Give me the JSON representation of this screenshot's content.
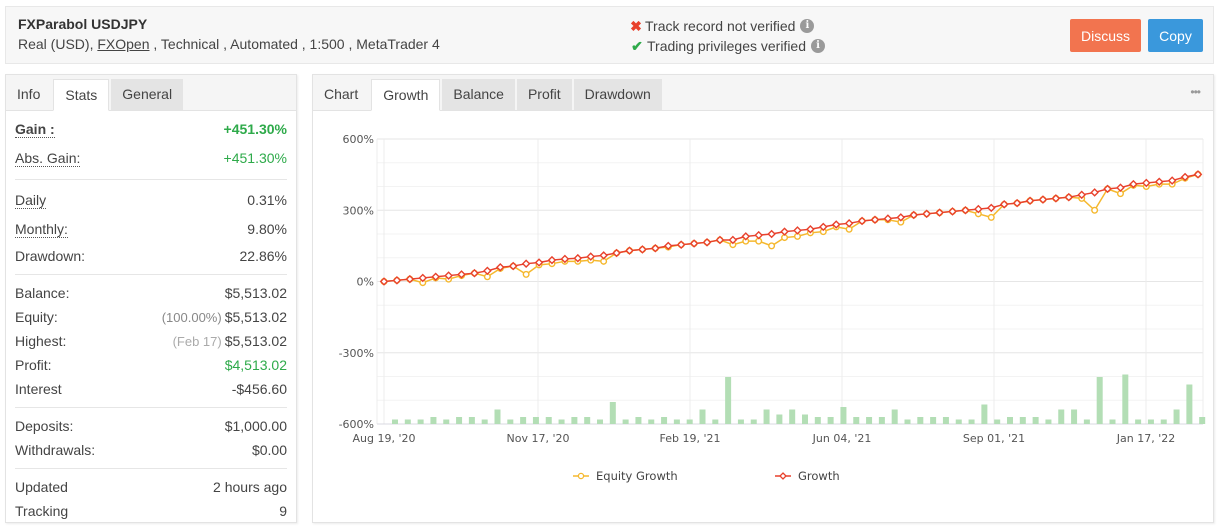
{
  "header": {
    "title": "FXParabol USDJPY",
    "account_type": "Real (USD), ",
    "broker": "FXOpen",
    "details": " , Technical , Automated , 1:500 , MetaTrader 4",
    "verifications": [
      {
        "icon": "x-icon",
        "text": "Track record not verified",
        "status": "not-verified"
      },
      {
        "icon": "check-icon",
        "text": "Trading privileges verified",
        "status": "verified"
      }
    ],
    "discuss_label": "Discuss",
    "copy_label": "Copy"
  },
  "stats_panel": {
    "tabs": [
      {
        "label": "Info",
        "state": "plain"
      },
      {
        "label": "Stats",
        "state": "active"
      },
      {
        "label": "General",
        "state": "gray"
      }
    ],
    "groups": [
      [
        {
          "label": "Gain :",
          "value": "+451.30%",
          "green": true,
          "bold": true,
          "dotted": true
        },
        {
          "label": "Abs. Gain:",
          "value": "+451.30%",
          "green": true,
          "dotted": true
        }
      ],
      [
        {
          "label": "Daily",
          "value": "0.31%",
          "dotted": true
        },
        {
          "label": "Monthly:",
          "value": "9.80%",
          "dotted": true
        },
        {
          "label": "Drawdown:",
          "value": "22.86%"
        }
      ],
      [
        {
          "label": "Balance:",
          "value": "$5,513.02"
        },
        {
          "label": "Equity:",
          "sub": "(100.00%)",
          "value": "$5,513.02"
        },
        {
          "label": "Highest:",
          "sub": "(Feb 17)",
          "value": "$5,513.02"
        },
        {
          "label": "Profit:",
          "value": "$4,513.02",
          "green": true
        },
        {
          "label": "Interest",
          "value": "-$456.60"
        }
      ],
      [
        {
          "label": "Deposits:",
          "value": "$1,000.00"
        },
        {
          "label": "Withdrawals:",
          "value": "$0.00"
        }
      ],
      [
        {
          "label": "Updated",
          "value": "2 hours ago"
        },
        {
          "label": "Tracking",
          "value": "9"
        }
      ]
    ]
  },
  "chart_panel": {
    "tabs": [
      {
        "label": "Chart",
        "state": "plain"
      },
      {
        "label": "Growth",
        "state": "active"
      },
      {
        "label": "Balance",
        "state": "gray"
      },
      {
        "label": "Profit",
        "state": "gray"
      },
      {
        "label": "Drawdown",
        "state": "gray"
      }
    ],
    "more_icon": "•••"
  },
  "colors": {
    "growth": "#e8412c",
    "equity": "#f5b82e",
    "bars": "#b3deb5",
    "discuss": "#f2744f",
    "copy": "#3a98dc",
    "positive": "#2eaa4a"
  },
  "chart_data": {
    "type": "line",
    "title": "",
    "xlabel": "",
    "ylabel": "",
    "ylim": [
      -600,
      600
    ],
    "yticks": [
      "600%",
      "300%",
      "0%",
      "-300%",
      "-600%"
    ],
    "xticks": [
      "Aug 19, '20",
      "Nov 17, '20",
      "Feb 19, '21",
      "Jun 04, '21",
      "Sep 01, '21",
      "Jan 17, '22"
    ],
    "grid": true,
    "legend": [
      "Equity Growth",
      "Growth"
    ],
    "legend_position": "bottom",
    "series": [
      {
        "name": "Growth",
        "values": [
          0,
          5,
          10,
          15,
          20,
          25,
          30,
          35,
          45,
          60,
          65,
          75,
          80,
          90,
          95,
          98,
          105,
          110,
          120,
          130,
          135,
          140,
          150,
          155,
          160,
          165,
          175,
          175,
          190,
          195,
          200,
          210,
          215,
          220,
          230,
          240,
          245,
          255,
          260,
          265,
          270,
          280,
          285,
          290,
          295,
          300,
          305,
          310,
          325,
          330,
          340,
          345,
          350,
          355,
          365,
          375,
          390,
          395,
          410,
          415,
          420,
          425,
          440,
          451
        ]
      },
      {
        "name": "Equity Growth",
        "values": [
          0,
          5,
          10,
          -5,
          15,
          10,
          25,
          35,
          20,
          55,
          65,
          30,
          70,
          75,
          85,
          85,
          90,
          85,
          120,
          130,
          135,
          140,
          145,
          155,
          160,
          165,
          175,
          155,
          170,
          170,
          150,
          185,
          190,
          205,
          210,
          230,
          220,
          255,
          260,
          260,
          250,
          280,
          285,
          290,
          295,
          300,
          285,
          270,
          325,
          330,
          340,
          345,
          350,
          355,
          350,
          300,
          390,
          370,
          405,
          400,
          410,
          410,
          435,
          451
        ]
      },
      {
        "name": "Bars",
        "values": [
          1,
          1,
          1,
          2,
          1,
          2,
          2,
          1,
          5,
          1,
          2,
          2,
          2,
          1,
          2,
          2,
          1,
          8,
          1,
          2,
          1,
          2,
          1,
          1,
          5,
          1,
          18,
          1,
          1,
          5,
          3,
          5,
          3,
          2,
          2,
          6,
          2,
          2,
          2,
          5,
          1,
          2,
          2,
          2,
          1,
          1,
          7,
          1,
          2,
          2,
          2,
          1,
          5,
          5,
          1,
          18,
          1,
          19,
          1,
          1,
          1,
          5,
          15,
          2
        ]
      }
    ]
  }
}
